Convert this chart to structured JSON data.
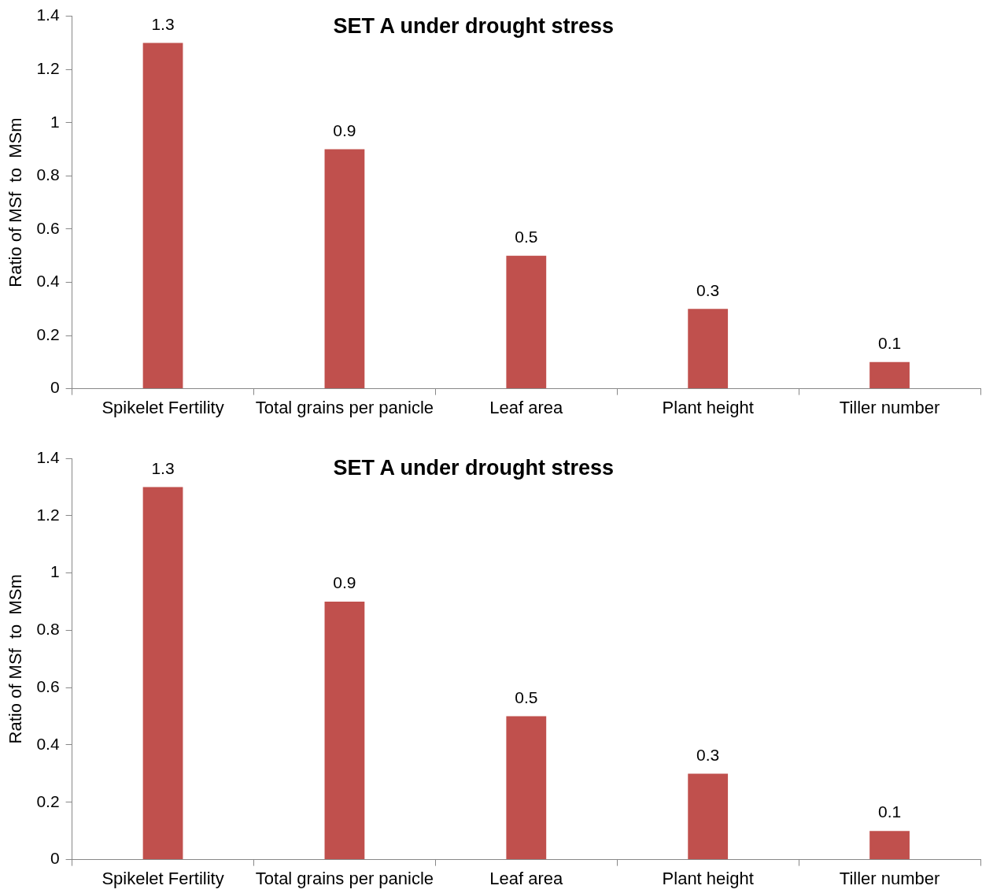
{
  "chart_data": [
    {
      "type": "bar",
      "title": "SET A under drought stress",
      "ylabel": "Ratio of MSf  to  MSm",
      "categories": [
        "Spikelet Fertility",
        "Total grains per panicle",
        "Leaf area",
        "Plant height",
        "Tiller number"
      ],
      "values": [
        1.3,
        0.9,
        0.5,
        0.3,
        0.1
      ],
      "color": "#c0504d",
      "ylim": [
        0,
        1.4
      ],
      "yticks": [
        0,
        0.2,
        0.4,
        0.6,
        0.8,
        1,
        1.2,
        1.4
      ],
      "data_labels": true,
      "grid": false
    },
    {
      "type": "bar",
      "title": "SET A under drought stress",
      "ylabel": "Ratio of MSf  to  MSm",
      "categories": [
        "Spikelet Fertility",
        "Total grains per panicle",
        "Leaf area",
        "Plant height",
        "Tiller number"
      ],
      "values": [
        1.3,
        0.9,
        0.5,
        0.3,
        0.1
      ],
      "color": "#c0504d",
      "ylim": [
        0,
        1.4
      ],
      "yticks": [
        0,
        0.2,
        0.4,
        0.6,
        0.8,
        1,
        1.2,
        1.4
      ],
      "data_labels": true,
      "grid": false
    }
  ]
}
